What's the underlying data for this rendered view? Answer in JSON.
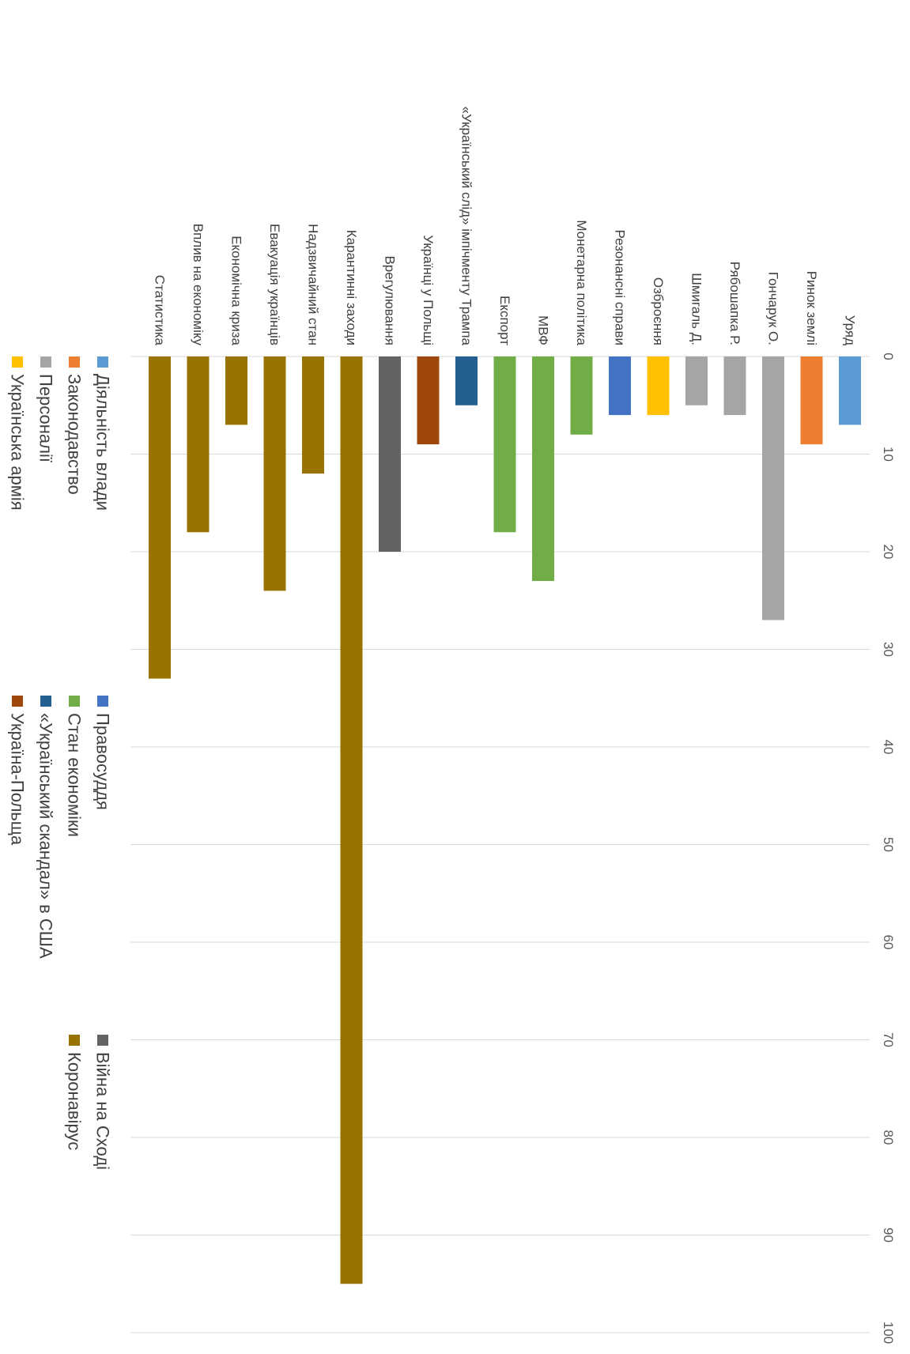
{
  "chart_data": {
    "type": "bar",
    "orientation": "horizontal",
    "rotated": "90deg clockwise",
    "xlim": [
      0,
      100
    ],
    "ticks": [
      0,
      10,
      20,
      30,
      40,
      50,
      60,
      70,
      80,
      90,
      100
    ],
    "grid": true,
    "legend_position": "bottom",
    "categories": [
      {
        "label": "Уряд",
        "value": 7,
        "series": "Діяльність влади"
      },
      {
        "label": "Ринок землі",
        "value": 9,
        "series": "Законодавство"
      },
      {
        "label": "Гончарук О.",
        "value": 27,
        "series": "Персоналії"
      },
      {
        "label": "Рябошапка Р.",
        "value": 6,
        "series": "Персоналії"
      },
      {
        "label": "Шмигаль Д.",
        "value": 5,
        "series": "Персоналії"
      },
      {
        "label": "Озброєння",
        "value": 6,
        "series": "Українська армія"
      },
      {
        "label": "Резонансні справи",
        "value": 6,
        "series": "Правосуддя"
      },
      {
        "label": "Монетарна політика",
        "value": 8,
        "series": "Стан економіки"
      },
      {
        "label": "МВФ",
        "value": 23,
        "series": "Стан економіки"
      },
      {
        "label": "Експорт",
        "value": 18,
        "series": "Стан економіки"
      },
      {
        "label": "«Український слід» імпічменту Трампа",
        "value": 5,
        "series": "«Український скандал» в США"
      },
      {
        "label": "Українці у Польщі",
        "value": 9,
        "series": "Україна-Польща"
      },
      {
        "label": "Врегулювання",
        "value": 20,
        "series": "Війна на Сході"
      },
      {
        "label": "Карантинні заходи",
        "value": 95,
        "series": "Коронавірус"
      },
      {
        "label": "Надзвичайний стан",
        "value": 12,
        "series": "Коронавірус"
      },
      {
        "label": "Евакуація українців",
        "value": 24,
        "series": "Коронавірус"
      },
      {
        "label": "Економічна криза",
        "value": 7,
        "series": "Коронавірус"
      },
      {
        "label": "Вплив на економіку",
        "value": 18,
        "series": "Коронавірус"
      },
      {
        "label": "Статистика",
        "value": 33,
        "series": "Коронавірус"
      }
    ],
    "series": [
      {
        "name": "Діяльність влади",
        "color": "#5b9bd5"
      },
      {
        "name": "Законодавство",
        "color": "#ed7d31"
      },
      {
        "name": "Персоналії",
        "color": "#a5a5a5"
      },
      {
        "name": "Українська армія",
        "color": "#ffc000"
      },
      {
        "name": "Правосуддя",
        "color": "#4472c4"
      },
      {
        "name": "Стан економіки",
        "color": "#70ad47"
      },
      {
        "name": "«Український скандал» в США",
        "color": "#255e91"
      },
      {
        "name": "Україна-Польща",
        "color": "#9e480e"
      },
      {
        "name": "Війна на Сході",
        "color": "#636363"
      },
      {
        "name": "Коронавірус",
        "color": "#997300"
      }
    ]
  }
}
